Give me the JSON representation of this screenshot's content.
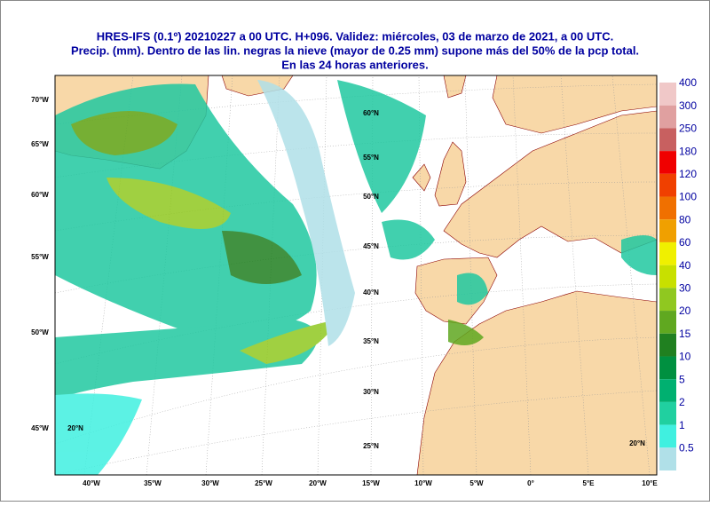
{
  "header": {
    "title_lines": [
      "HRES-IFS (0.1º) 20210227 a 00 UTC.  H+096. Validez: miércoles, 03 de marzo de 2021,  a  00 UTC.",
      "Precip. (mm). Dentro de las lin. negras la nieve (mayor de 0.25 mm) supone más del 50% de la pcp total.",
      "En las 24 horas anteriores."
    ]
  },
  "map": {
    "bottom_labels": [
      "40°W",
      "35°W",
      "30°W",
      "25°W",
      "20°W",
      "15°W",
      "10°W",
      "5°W",
      "0°",
      "5°E",
      "10°E"
    ],
    "left_labels": [
      "70°W",
      "65°W",
      "60°W",
      "55°W",
      "50°W",
      "45°W"
    ],
    "lat_labels": [
      "60°N",
      "55°N",
      "50°N",
      "45°N",
      "40°N",
      "35°N",
      "30°N",
      "25°N",
      "20°N",
      "20°N"
    ]
  },
  "legend": {
    "levels": [
      {
        "label": "400",
        "color": "#f0c8c8"
      },
      {
        "label": "300",
        "color": "#e0a0a0"
      },
      {
        "label": "250",
        "color": "#c86060"
      },
      {
        "label": "180",
        "color": "#f00000"
      },
      {
        "label": "120",
        "color": "#f04000"
      },
      {
        "label": "100",
        "color": "#f07000"
      },
      {
        "label": "80",
        "color": "#f0a000"
      },
      {
        "label": "60",
        "color": "#f0f000"
      },
      {
        "label": "40",
        "color": "#c8e000"
      },
      {
        "label": "30",
        "color": "#90c820"
      },
      {
        "label": "20",
        "color": "#60a820"
      },
      {
        "label": "15",
        "color": "#208020"
      },
      {
        "label": "10",
        "color": "#009040"
      },
      {
        "label": "5",
        "color": "#00b070"
      },
      {
        "label": "2",
        "color": "#20d0a0"
      },
      {
        "label": "1",
        "color": "#40f0e0"
      },
      {
        "label": "0.5",
        "color": "#b0e0e8"
      }
    ]
  }
}
